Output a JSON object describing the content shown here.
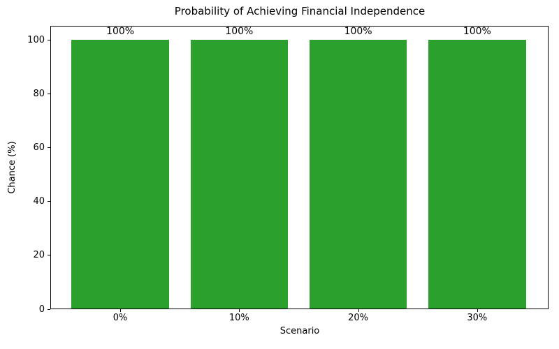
{
  "chart_data": {
    "type": "bar",
    "title": "Probability of Achieving Financial Independence",
    "xlabel": "Scenario",
    "ylabel": "Chance (%)",
    "categories": [
      "0%",
      "10%",
      "20%",
      "30%"
    ],
    "values": [
      100,
      100,
      100,
      100
    ],
    "bar_labels": [
      "100%",
      "100%",
      "100%",
      "100%"
    ],
    "yticks": [
      0,
      20,
      40,
      60,
      80,
      100
    ],
    "ylim": [
      0,
      105.2
    ],
    "bar_color": "#2ca02c",
    "background_color": "#ffffff",
    "text_color": "#000000",
    "grid": false,
    "legend_position": "none"
  }
}
